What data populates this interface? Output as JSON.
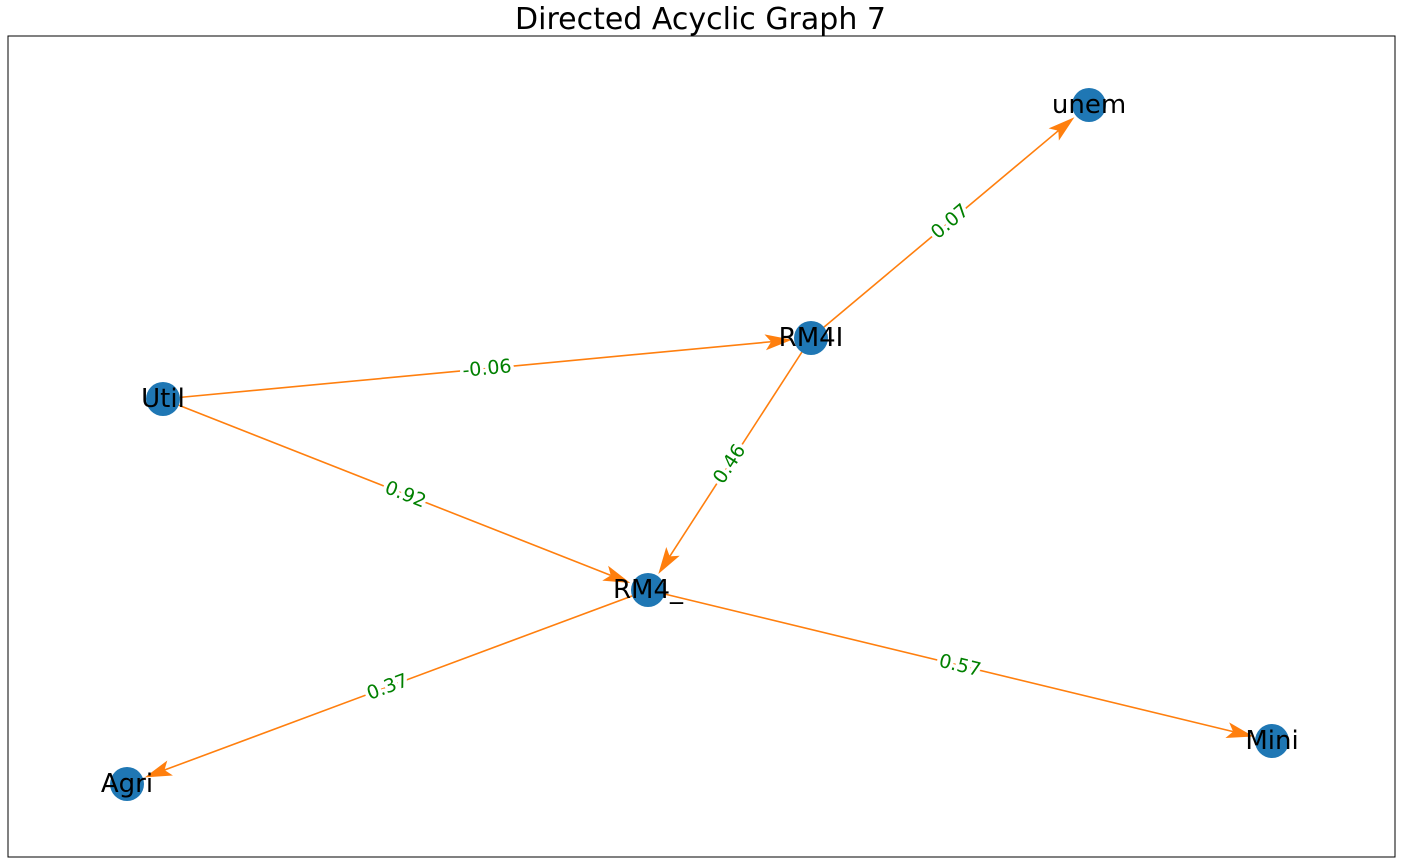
{
  "title": "Directed Acyclic Graph 7",
  "colors": {
    "node": "#1f77b4",
    "edge": "#ff7f0e",
    "edge_label": "#008000",
    "frame": "#000000"
  },
  "nodes": [
    {
      "id": "unem",
      "label": "unem"
    },
    {
      "id": "RM4I",
      "label": "RM4I"
    },
    {
      "id": "Util",
      "label": "Util"
    },
    {
      "id": "RM4_",
      "label": "RM4_"
    },
    {
      "id": "Agri",
      "label": "Agri"
    },
    {
      "id": "Mini",
      "label": "Mini"
    }
  ],
  "edges": [
    {
      "from": "RM4I",
      "to": "unem",
      "label": "0.07"
    },
    {
      "from": "Util",
      "to": "RM4I",
      "label": "-0.06"
    },
    {
      "from": "Util",
      "to": "RM4_",
      "label": "0.92"
    },
    {
      "from": "RM4I",
      "to": "RM4_",
      "label": "0.46"
    },
    {
      "from": "RM4_",
      "to": "Agri",
      "label": "0.37"
    },
    {
      "from": "RM4_",
      "to": "Mini",
      "label": "0.57"
    }
  ]
}
